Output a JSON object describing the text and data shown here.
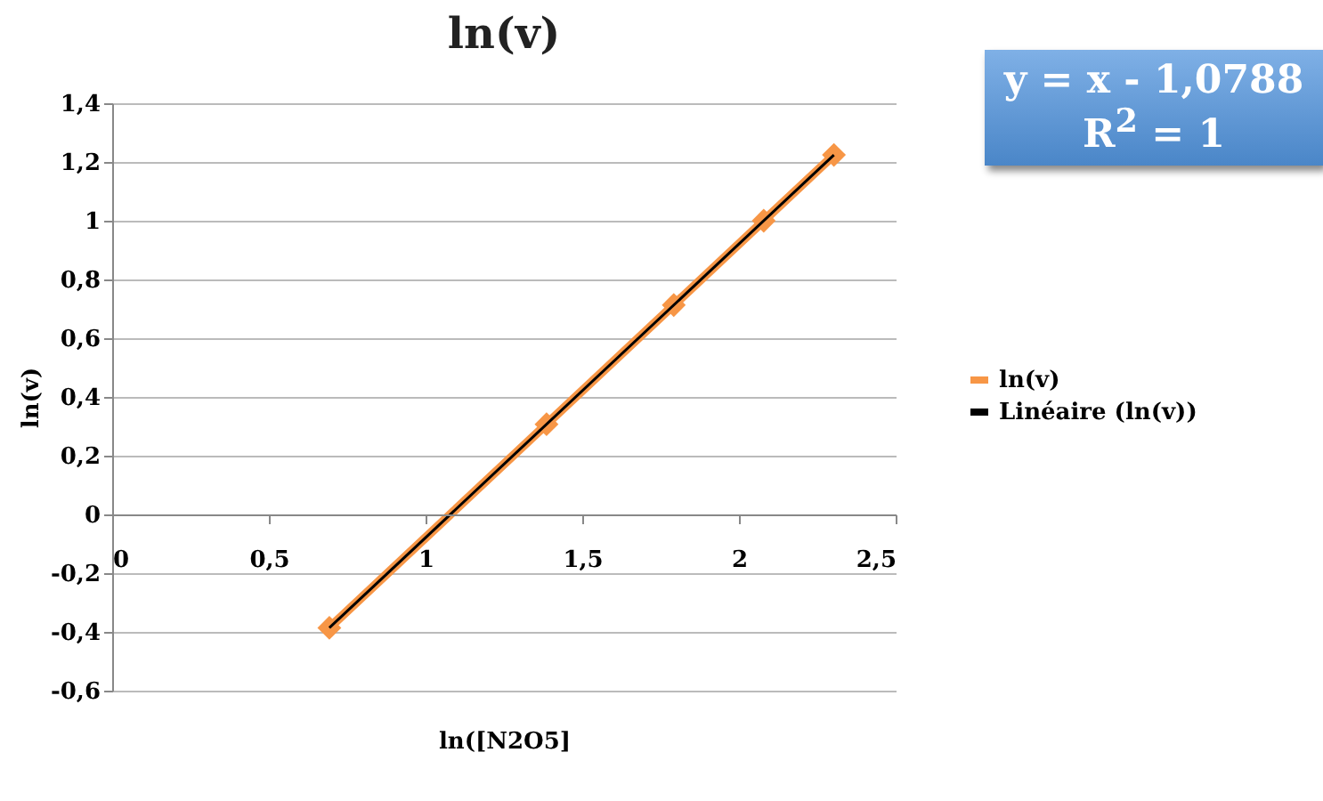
{
  "chart_data": {
    "type": "line",
    "title": "ln(v)",
    "xlabel": "ln([N2O5]",
    "ylabel": "ln(v)",
    "annotations": [
      "y = x - 1,0788",
      "R$^{2}$ = 1"
    ],
    "series": [
      {
        "name": "ln(v)",
        "type": "line",
        "color": "#f79646",
        "marker": "diamond",
        "x": [
          0.693,
          1.386,
          1.792,
          2.079,
          2.303
        ],
        "values": [
          -0.386,
          0.307,
          0.713,
          1.0,
          1.224
        ]
      },
      {
        "name": "Linéaire (ln(v))",
        "type": "line",
        "color": "#000000",
        "marker": "none",
        "x": [
          0.693,
          2.303
        ],
        "values": [
          -0.386,
          1.224
        ]
      }
    ],
    "xlim": [
      0,
      2.5
    ],
    "xticks": [
      0,
      {
        "value": 0.5,
        "label": "0,5"
      },
      1,
      {
        "value": 1.5,
        "label": "1,5"
      },
      2,
      {
        "value": 2.5,
        "label": "2,5"
      }
    ],
    "ylim": [
      -0.6,
      1.4
    ],
    "yticks": [
      {
        "value": -0.6,
        "label": "-0,6"
      },
      {
        "value": -0.4,
        "label": "-0,4"
      },
      {
        "value": -0.2,
        "label": "-0,2"
      },
      0,
      {
        "value": 0.2,
        "label": "0,2"
      },
      {
        "value": 0.4,
        "label": "0,4"
      },
      {
        "value": 0.6,
        "label": "0,6"
      },
      {
        "value": 0.8,
        "label": "0,8"
      },
      1,
      {
        "value": 1.2,
        "label": "1,2"
      },
      {
        "value": 1.4,
        "label": "1,4"
      }
    ],
    "grid": "y",
    "legend": "right",
    "line_style": "solid"
  }
}
